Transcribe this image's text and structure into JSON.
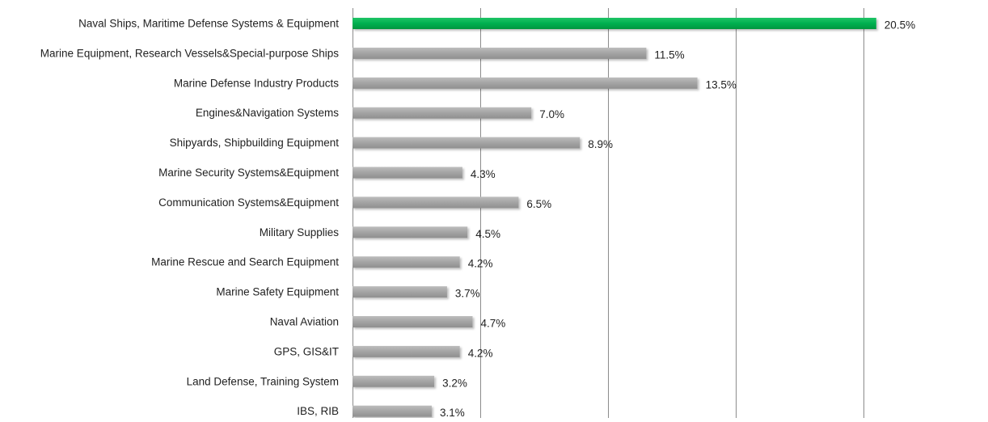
{
  "chart_data": {
    "type": "bar",
    "orientation": "horizontal",
    "categories": [
      "Naval Ships, Maritime Defense Systems & Equipment",
      "Marine Equipment, Research Vessels&Special-purpose Ships",
      "Marine Defense Industry Products",
      "Engines&Navigation Systems",
      "Shipyards, Shipbuilding Equipment",
      "Marine Security Systems&Equipment",
      "Communication Systems&Equipment",
      "Military Supplies",
      "Marine Rescue and Search Equipment",
      "Marine Safety Equipment",
      "Naval Aviation",
      "GPS, GIS&IT",
      "Land Defense, Training System",
      "IBS, RIB"
    ],
    "values": [
      20.5,
      11.5,
      13.5,
      7.0,
      8.9,
      4.3,
      6.5,
      4.5,
      4.2,
      3.7,
      4.7,
      4.2,
      3.2,
      3.1
    ],
    "value_labels": [
      "20.5%",
      "11.5%",
      "13.5%",
      "7.0%",
      "8.9%",
      "4.3%",
      "6.5%",
      "4.5%",
      "4.2%",
      "3.7%",
      "4.7%",
      "4.2%",
      "3.2%",
      "3.1%"
    ],
    "highlight_index": 0,
    "xlim": [
      0,
      25
    ],
    "gridlines": [
      0,
      5,
      10,
      15,
      20,
      25
    ],
    "grid": true,
    "legend": false,
    "colors": {
      "highlight": "#00b050",
      "bar": "#a6a6a6",
      "grid": "#8c8c8c",
      "text": "#222222"
    }
  }
}
